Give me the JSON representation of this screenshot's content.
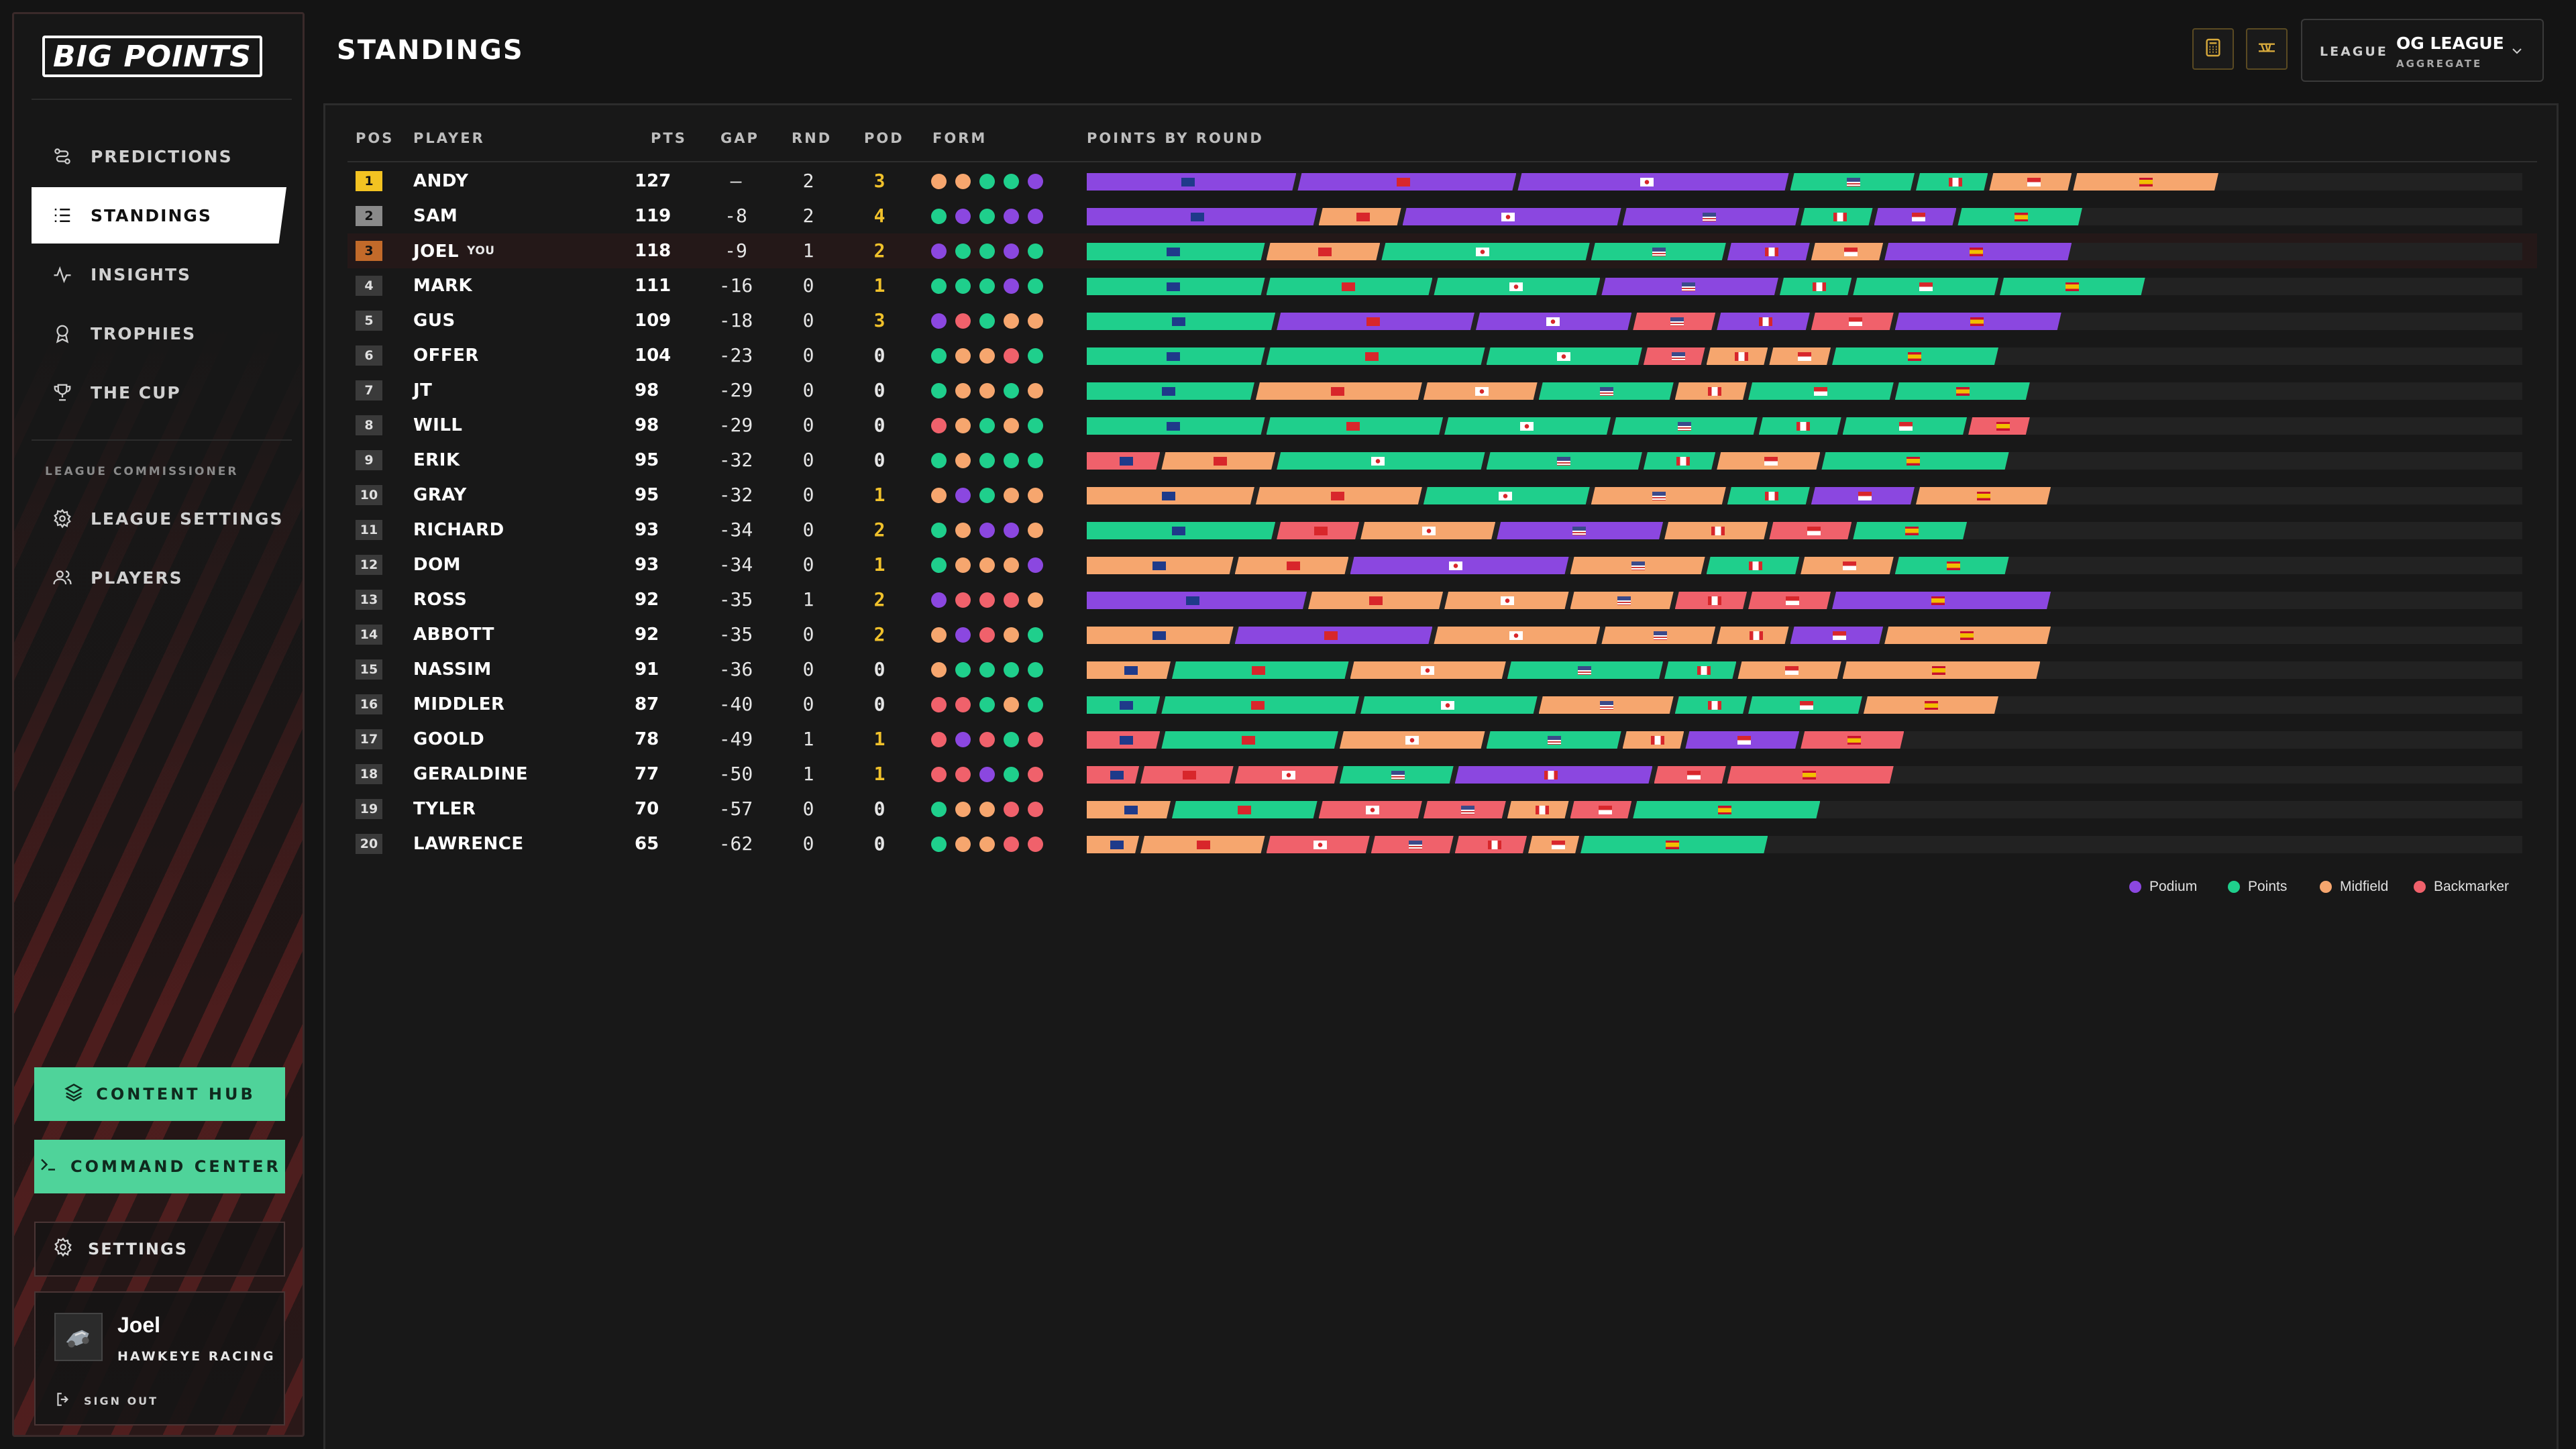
{
  "app": {
    "logo_text": "BIG POINTS",
    "page_title": "STANDINGS"
  },
  "colors": {
    "podium": "#8b47e0",
    "points": "#1fcf8c",
    "midfield": "#f6a66e",
    "backmarker": "#f0616b",
    "gold": "#f3c322",
    "silver": "#8a8a8a",
    "bronze": "#c26a2a"
  },
  "sidebar": {
    "nav": [
      {
        "label": "PREDICTIONS",
        "icon": "predictions-icon"
      },
      {
        "label": "STANDINGS",
        "icon": "list-icon"
      },
      {
        "label": "INSIGHTS",
        "icon": "pulse-icon"
      },
      {
        "label": "TROPHIES",
        "icon": "medal-icon"
      },
      {
        "label": "THE CUP",
        "icon": "trophy-icon"
      }
    ],
    "section_label": "LEAGUE COMMISSIONER",
    "commissioner": [
      {
        "label": "LEAGUE SETTINGS",
        "icon": "gear-icon"
      },
      {
        "label": "PLAYERS",
        "icon": "users-icon"
      }
    ],
    "content_hub": "CONTENT HUB",
    "command_center": "COMMAND CENTER",
    "settings": "SETTINGS",
    "user": {
      "name": "Joel",
      "team": "HAWKEYE RACING",
      "sign_out": "SIGN OUT"
    }
  },
  "header": {
    "league_label": "LEAGUE",
    "league_value": "OG LEAGUE",
    "league_sub": "AGGREGATE"
  },
  "table": {
    "headers": {
      "pos": "POS",
      "player": "PLAYER",
      "pts": "PTS",
      "gap": "GAP",
      "rnd": "RND",
      "pod": "POD",
      "form": "FORM",
      "rounds": "POINTS BY ROUND"
    },
    "you_tag": "YOU",
    "flags": [
      "au",
      "cn",
      "jp",
      "us",
      "ca",
      "mc",
      "es"
    ],
    "rows": [
      {
        "pos": "1",
        "player": "ANDY",
        "pts": "127",
        "gap": "–",
        "rnd": "2",
        "pod": "3",
        "form": [
          "midfield",
          "midfield",
          "points",
          "points",
          "podium"
        ],
        "rounds": [
          {
            "c": "podium",
            "v": 20
          },
          {
            "c": "podium",
            "v": 21
          },
          {
            "c": "podium",
            "v": 26
          },
          {
            "c": "points",
            "v": 12
          },
          {
            "c": "points",
            "v": 7
          },
          {
            "c": "midfield",
            "v": 8
          },
          {
            "c": "midfield",
            "v": 14
          }
        ]
      },
      {
        "pos": "2",
        "player": "SAM",
        "pts": "119",
        "gap": "-8",
        "rnd": "2",
        "pod": "4",
        "form": [
          "points",
          "podium",
          "points",
          "podium",
          "podium"
        ],
        "rounds": [
          {
            "c": "podium",
            "v": 22
          },
          {
            "c": "midfield",
            "v": 8
          },
          {
            "c": "podium",
            "v": 21
          },
          {
            "c": "podium",
            "v": 17
          },
          {
            "c": "points",
            "v": 7
          },
          {
            "c": "podium",
            "v": 8
          },
          {
            "c": "points",
            "v": 12
          }
        ]
      },
      {
        "pos": "3",
        "player": "JOEL",
        "you": true,
        "pts": "118",
        "gap": "-9",
        "rnd": "1",
        "pod": "2",
        "form": [
          "podium",
          "points",
          "points",
          "podium",
          "points"
        ],
        "rounds": [
          {
            "c": "points",
            "v": 17
          },
          {
            "c": "midfield",
            "v": 11
          },
          {
            "c": "points",
            "v": 20
          },
          {
            "c": "points",
            "v": 13
          },
          {
            "c": "podium",
            "v": 8
          },
          {
            "c": "midfield",
            "v": 7
          },
          {
            "c": "podium",
            "v": 18
          }
        ]
      },
      {
        "pos": "4",
        "player": "MARK",
        "pts": "111",
        "gap": "-16",
        "rnd": "0",
        "pod": "1",
        "form": [
          "points",
          "points",
          "points",
          "podium",
          "points"
        ],
        "rounds": [
          {
            "c": "points",
            "v": 17
          },
          {
            "c": "points",
            "v": 16
          },
          {
            "c": "points",
            "v": 16
          },
          {
            "c": "podium",
            "v": 17
          },
          {
            "c": "points",
            "v": 7
          },
          {
            "c": "points",
            "v": 14
          },
          {
            "c": "points",
            "v": 14
          }
        ]
      },
      {
        "pos": "5",
        "player": "GUS",
        "pts": "109",
        "gap": "-18",
        "rnd": "0",
        "pod": "3",
        "form": [
          "podium",
          "backmarker",
          "points",
          "midfield",
          "midfield"
        ],
        "rounds": [
          {
            "c": "points",
            "v": 18
          },
          {
            "c": "podium",
            "v": 19
          },
          {
            "c": "podium",
            "v": 15
          },
          {
            "c": "backmarker",
            "v": 8
          },
          {
            "c": "podium",
            "v": 9
          },
          {
            "c": "backmarker",
            "v": 8
          },
          {
            "c": "podium",
            "v": 16
          }
        ]
      },
      {
        "pos": "6",
        "player": "OFFER",
        "pts": "104",
        "gap": "-23",
        "rnd": "0",
        "pod": "0",
        "form": [
          "points",
          "midfield",
          "midfield",
          "backmarker",
          "points"
        ],
        "rounds": [
          {
            "c": "points",
            "v": 17
          },
          {
            "c": "points",
            "v": 21
          },
          {
            "c": "points",
            "v": 15
          },
          {
            "c": "backmarker",
            "v": 6
          },
          {
            "c": "midfield",
            "v": 6
          },
          {
            "c": "midfield",
            "v": 6
          },
          {
            "c": "points",
            "v": 16
          }
        ]
      },
      {
        "pos": "7",
        "player": "JT",
        "pts": "98",
        "gap": "-29",
        "rnd": "0",
        "pod": "0",
        "form": [
          "points",
          "midfield",
          "midfield",
          "points",
          "midfield"
        ],
        "rounds": [
          {
            "c": "points",
            "v": 16
          },
          {
            "c": "midfield",
            "v": 16
          },
          {
            "c": "midfield",
            "v": 11
          },
          {
            "c": "points",
            "v": 13
          },
          {
            "c": "midfield",
            "v": 7
          },
          {
            "c": "points",
            "v": 14
          },
          {
            "c": "points",
            "v": 13
          }
        ]
      },
      {
        "pos": "8",
        "player": "WILL",
        "pts": "98",
        "gap": "-29",
        "rnd": "0",
        "pod": "0",
        "form": [
          "backmarker",
          "midfield",
          "points",
          "midfield",
          "points"
        ],
        "rounds": [
          {
            "c": "points",
            "v": 17
          },
          {
            "c": "points",
            "v": 17
          },
          {
            "c": "points",
            "v": 16
          },
          {
            "c": "points",
            "v": 14
          },
          {
            "c": "points",
            "v": 8
          },
          {
            "c": "points",
            "v": 12
          },
          {
            "c": "backmarker",
            "v": 6
          }
        ]
      },
      {
        "pos": "9",
        "player": "ERIK",
        "pts": "95",
        "gap": "-32",
        "rnd": "0",
        "pod": "0",
        "form": [
          "points",
          "midfield",
          "points",
          "points",
          "points"
        ],
        "rounds": [
          {
            "c": "backmarker",
            "v": 7
          },
          {
            "c": "midfield",
            "v": 11
          },
          {
            "c": "points",
            "v": 20
          },
          {
            "c": "points",
            "v": 15
          },
          {
            "c": "points",
            "v": 7
          },
          {
            "c": "midfield",
            "v": 10
          },
          {
            "c": "points",
            "v": 18
          }
        ]
      },
      {
        "pos": "10",
        "player": "GRAY",
        "pts": "95",
        "gap": "-32",
        "rnd": "0",
        "pod": "1",
        "form": [
          "midfield",
          "podium",
          "points",
          "midfield",
          "midfield"
        ],
        "rounds": [
          {
            "c": "midfield",
            "v": 16
          },
          {
            "c": "midfield",
            "v": 16
          },
          {
            "c": "points",
            "v": 16
          },
          {
            "c": "midfield",
            "v": 13
          },
          {
            "c": "points",
            "v": 8
          },
          {
            "c": "podium",
            "v": 10
          },
          {
            "c": "midfield",
            "v": 13
          }
        ]
      },
      {
        "pos": "11",
        "player": "RICHARD",
        "pts": "93",
        "gap": "-34",
        "rnd": "0",
        "pod": "2",
        "form": [
          "points",
          "midfield",
          "podium",
          "podium",
          "midfield"
        ],
        "rounds": [
          {
            "c": "points",
            "v": 18
          },
          {
            "c": "backmarker",
            "v": 8
          },
          {
            "c": "midfield",
            "v": 13
          },
          {
            "c": "podium",
            "v": 16
          },
          {
            "c": "midfield",
            "v": 10
          },
          {
            "c": "backmarker",
            "v": 8
          },
          {
            "c": "points",
            "v": 11
          }
        ]
      },
      {
        "pos": "12",
        "player": "DOM",
        "pts": "93",
        "gap": "-34",
        "rnd": "0",
        "pod": "1",
        "form": [
          "points",
          "midfield",
          "midfield",
          "midfield",
          "podium"
        ],
        "rounds": [
          {
            "c": "midfield",
            "v": 14
          },
          {
            "c": "midfield",
            "v": 11
          },
          {
            "c": "podium",
            "v": 21
          },
          {
            "c": "midfield",
            "v": 13
          },
          {
            "c": "points",
            "v": 9
          },
          {
            "c": "midfield",
            "v": 9
          },
          {
            "c": "points",
            "v": 11
          }
        ]
      },
      {
        "pos": "13",
        "player": "ROSS",
        "pts": "92",
        "gap": "-35",
        "rnd": "1",
        "pod": "2",
        "form": [
          "podium",
          "backmarker",
          "backmarker",
          "backmarker",
          "midfield"
        ],
        "rounds": [
          {
            "c": "podium",
            "v": 21
          },
          {
            "c": "midfield",
            "v": 13
          },
          {
            "c": "midfield",
            "v": 12
          },
          {
            "c": "midfield",
            "v": 10
          },
          {
            "c": "backmarker",
            "v": 7
          },
          {
            "c": "backmarker",
            "v": 8
          },
          {
            "c": "podium",
            "v": 21
          }
        ]
      },
      {
        "pos": "14",
        "player": "ABBOTT",
        "pts": "92",
        "gap": "-35",
        "rnd": "0",
        "pod": "2",
        "form": [
          "midfield",
          "podium",
          "backmarker",
          "midfield",
          "points"
        ],
        "rounds": [
          {
            "c": "midfield",
            "v": 14
          },
          {
            "c": "podium",
            "v": 19
          },
          {
            "c": "midfield",
            "v": 16
          },
          {
            "c": "midfield",
            "v": 11
          },
          {
            "c": "midfield",
            "v": 7
          },
          {
            "c": "podium",
            "v": 9
          },
          {
            "c": "midfield",
            "v": 16
          }
        ]
      },
      {
        "pos": "15",
        "player": "NASSIM",
        "pts": "91",
        "gap": "-36",
        "rnd": "0",
        "pod": "0",
        "form": [
          "midfield",
          "points",
          "points",
          "points",
          "points"
        ],
        "rounds": [
          {
            "c": "midfield",
            "v": 8
          },
          {
            "c": "points",
            "v": 17
          },
          {
            "c": "midfield",
            "v": 15
          },
          {
            "c": "points",
            "v": 15
          },
          {
            "c": "points",
            "v": 7
          },
          {
            "c": "midfield",
            "v": 10
          },
          {
            "c": "midfield",
            "v": 19
          }
        ]
      },
      {
        "pos": "16",
        "player": "MIDDLER",
        "pts": "87",
        "gap": "-40",
        "rnd": "0",
        "pod": "0",
        "form": [
          "backmarker",
          "backmarker",
          "points",
          "midfield",
          "points"
        ],
        "rounds": [
          {
            "c": "points",
            "v": 7
          },
          {
            "c": "points",
            "v": 19
          },
          {
            "c": "points",
            "v": 17
          },
          {
            "c": "midfield",
            "v": 13
          },
          {
            "c": "points",
            "v": 7
          },
          {
            "c": "points",
            "v": 11
          },
          {
            "c": "midfield",
            "v": 13
          }
        ]
      },
      {
        "pos": "17",
        "player": "GOOLD",
        "pts": "78",
        "gap": "-49",
        "rnd": "1",
        "pod": "1",
        "form": [
          "backmarker",
          "podium",
          "backmarker",
          "points",
          "backmarker"
        ],
        "rounds": [
          {
            "c": "backmarker",
            "v": 7
          },
          {
            "c": "points",
            "v": 17
          },
          {
            "c": "midfield",
            "v": 14
          },
          {
            "c": "points",
            "v": 13
          },
          {
            "c": "midfield",
            "v": 6
          },
          {
            "c": "podium",
            "v": 11
          },
          {
            "c": "backmarker",
            "v": 10
          }
        ]
      },
      {
        "pos": "18",
        "player": "GERALDINE",
        "pts": "77",
        "gap": "-50",
        "rnd": "1",
        "pod": "1",
        "form": [
          "backmarker",
          "backmarker",
          "podium",
          "points",
          "backmarker"
        ],
        "rounds": [
          {
            "c": "backmarker",
            "v": 5
          },
          {
            "c": "backmarker",
            "v": 9
          },
          {
            "c": "backmarker",
            "v": 10
          },
          {
            "c": "points",
            "v": 11
          },
          {
            "c": "podium",
            "v": 19
          },
          {
            "c": "backmarker",
            "v": 7
          },
          {
            "c": "backmarker",
            "v": 16
          }
        ]
      },
      {
        "pos": "19",
        "player": "TYLER",
        "pts": "70",
        "gap": "-57",
        "rnd": "0",
        "pod": "0",
        "form": [
          "points",
          "midfield",
          "midfield",
          "backmarker",
          "backmarker"
        ],
        "rounds": [
          {
            "c": "midfield",
            "v": 8
          },
          {
            "c": "points",
            "v": 14
          },
          {
            "c": "backmarker",
            "v": 10
          },
          {
            "c": "backmarker",
            "v": 8
          },
          {
            "c": "midfield",
            "v": 6
          },
          {
            "c": "backmarker",
            "v": 6
          },
          {
            "c": "points",
            "v": 18
          }
        ]
      },
      {
        "pos": "20",
        "player": "LAWRENCE",
        "pts": "65",
        "gap": "-62",
        "rnd": "0",
        "pod": "0",
        "form": [
          "points",
          "midfield",
          "midfield",
          "backmarker",
          "backmarker"
        ],
        "rounds": [
          {
            "c": "midfield",
            "v": 5
          },
          {
            "c": "midfield",
            "v": 12
          },
          {
            "c": "backmarker",
            "v": 10
          },
          {
            "c": "backmarker",
            "v": 8
          },
          {
            "c": "backmarker",
            "v": 7
          },
          {
            "c": "midfield",
            "v": 5
          },
          {
            "c": "points",
            "v": 18
          }
        ]
      }
    ]
  },
  "legend": [
    {
      "label": "Podium",
      "color": "#8b47e0"
    },
    {
      "label": "Points",
      "color": "#1fcf8c"
    },
    {
      "label": "Midfield",
      "color": "#f6a66e"
    },
    {
      "label": "Backmarker",
      "color": "#f0616b"
    }
  ]
}
